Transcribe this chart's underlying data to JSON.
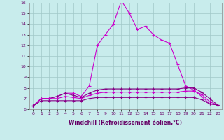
{
  "xlabel": "Windchill (Refroidissement éolien,°C)",
  "bg_color": "#c8ecec",
  "grid_color": "#a0c8c8",
  "line_color1": "#cc00cc",
  "line_color2": "#880088",
  "xlim": [
    -0.5,
    23.5
  ],
  "ylim": [
    6,
    16
  ],
  "xticks": [
    0,
    1,
    2,
    3,
    4,
    5,
    6,
    7,
    8,
    9,
    10,
    11,
    12,
    13,
    14,
    15,
    16,
    17,
    18,
    19,
    20,
    21,
    22,
    23
  ],
  "yticks": [
    6,
    7,
    8,
    9,
    10,
    11,
    12,
    13,
    14,
    15,
    16
  ],
  "series1": [
    6.3,
    7.0,
    7.0,
    7.2,
    7.5,
    7.5,
    7.2,
    8.2,
    12.0,
    13.0,
    14.0,
    16.2,
    15.0,
    13.5,
    13.8,
    13.0,
    12.5,
    12.2,
    10.2,
    8.2,
    7.8,
    7.2,
    6.5,
    6.4
  ],
  "series2": [
    6.3,
    7.0,
    7.0,
    7.2,
    7.5,
    7.3,
    7.1,
    7.5,
    7.8,
    7.9,
    7.9,
    7.9,
    7.9,
    7.9,
    7.9,
    7.9,
    7.9,
    7.9,
    7.9,
    8.0,
    8.0,
    7.6,
    7.0,
    6.4
  ],
  "series3": [
    6.3,
    7.0,
    7.0,
    7.0,
    7.2,
    7.1,
    7.0,
    7.3,
    7.5,
    7.6,
    7.6,
    7.6,
    7.6,
    7.6,
    7.6,
    7.6,
    7.6,
    7.6,
    7.6,
    7.7,
    7.7,
    7.4,
    6.7,
    6.4
  ],
  "series4": [
    6.3,
    6.8,
    6.8,
    6.8,
    6.8,
    6.8,
    6.8,
    7.0,
    7.1,
    7.1,
    7.1,
    7.1,
    7.1,
    7.1,
    7.1,
    7.1,
    7.1,
    7.1,
    7.1,
    7.1,
    7.1,
    6.9,
    6.5,
    6.4
  ]
}
